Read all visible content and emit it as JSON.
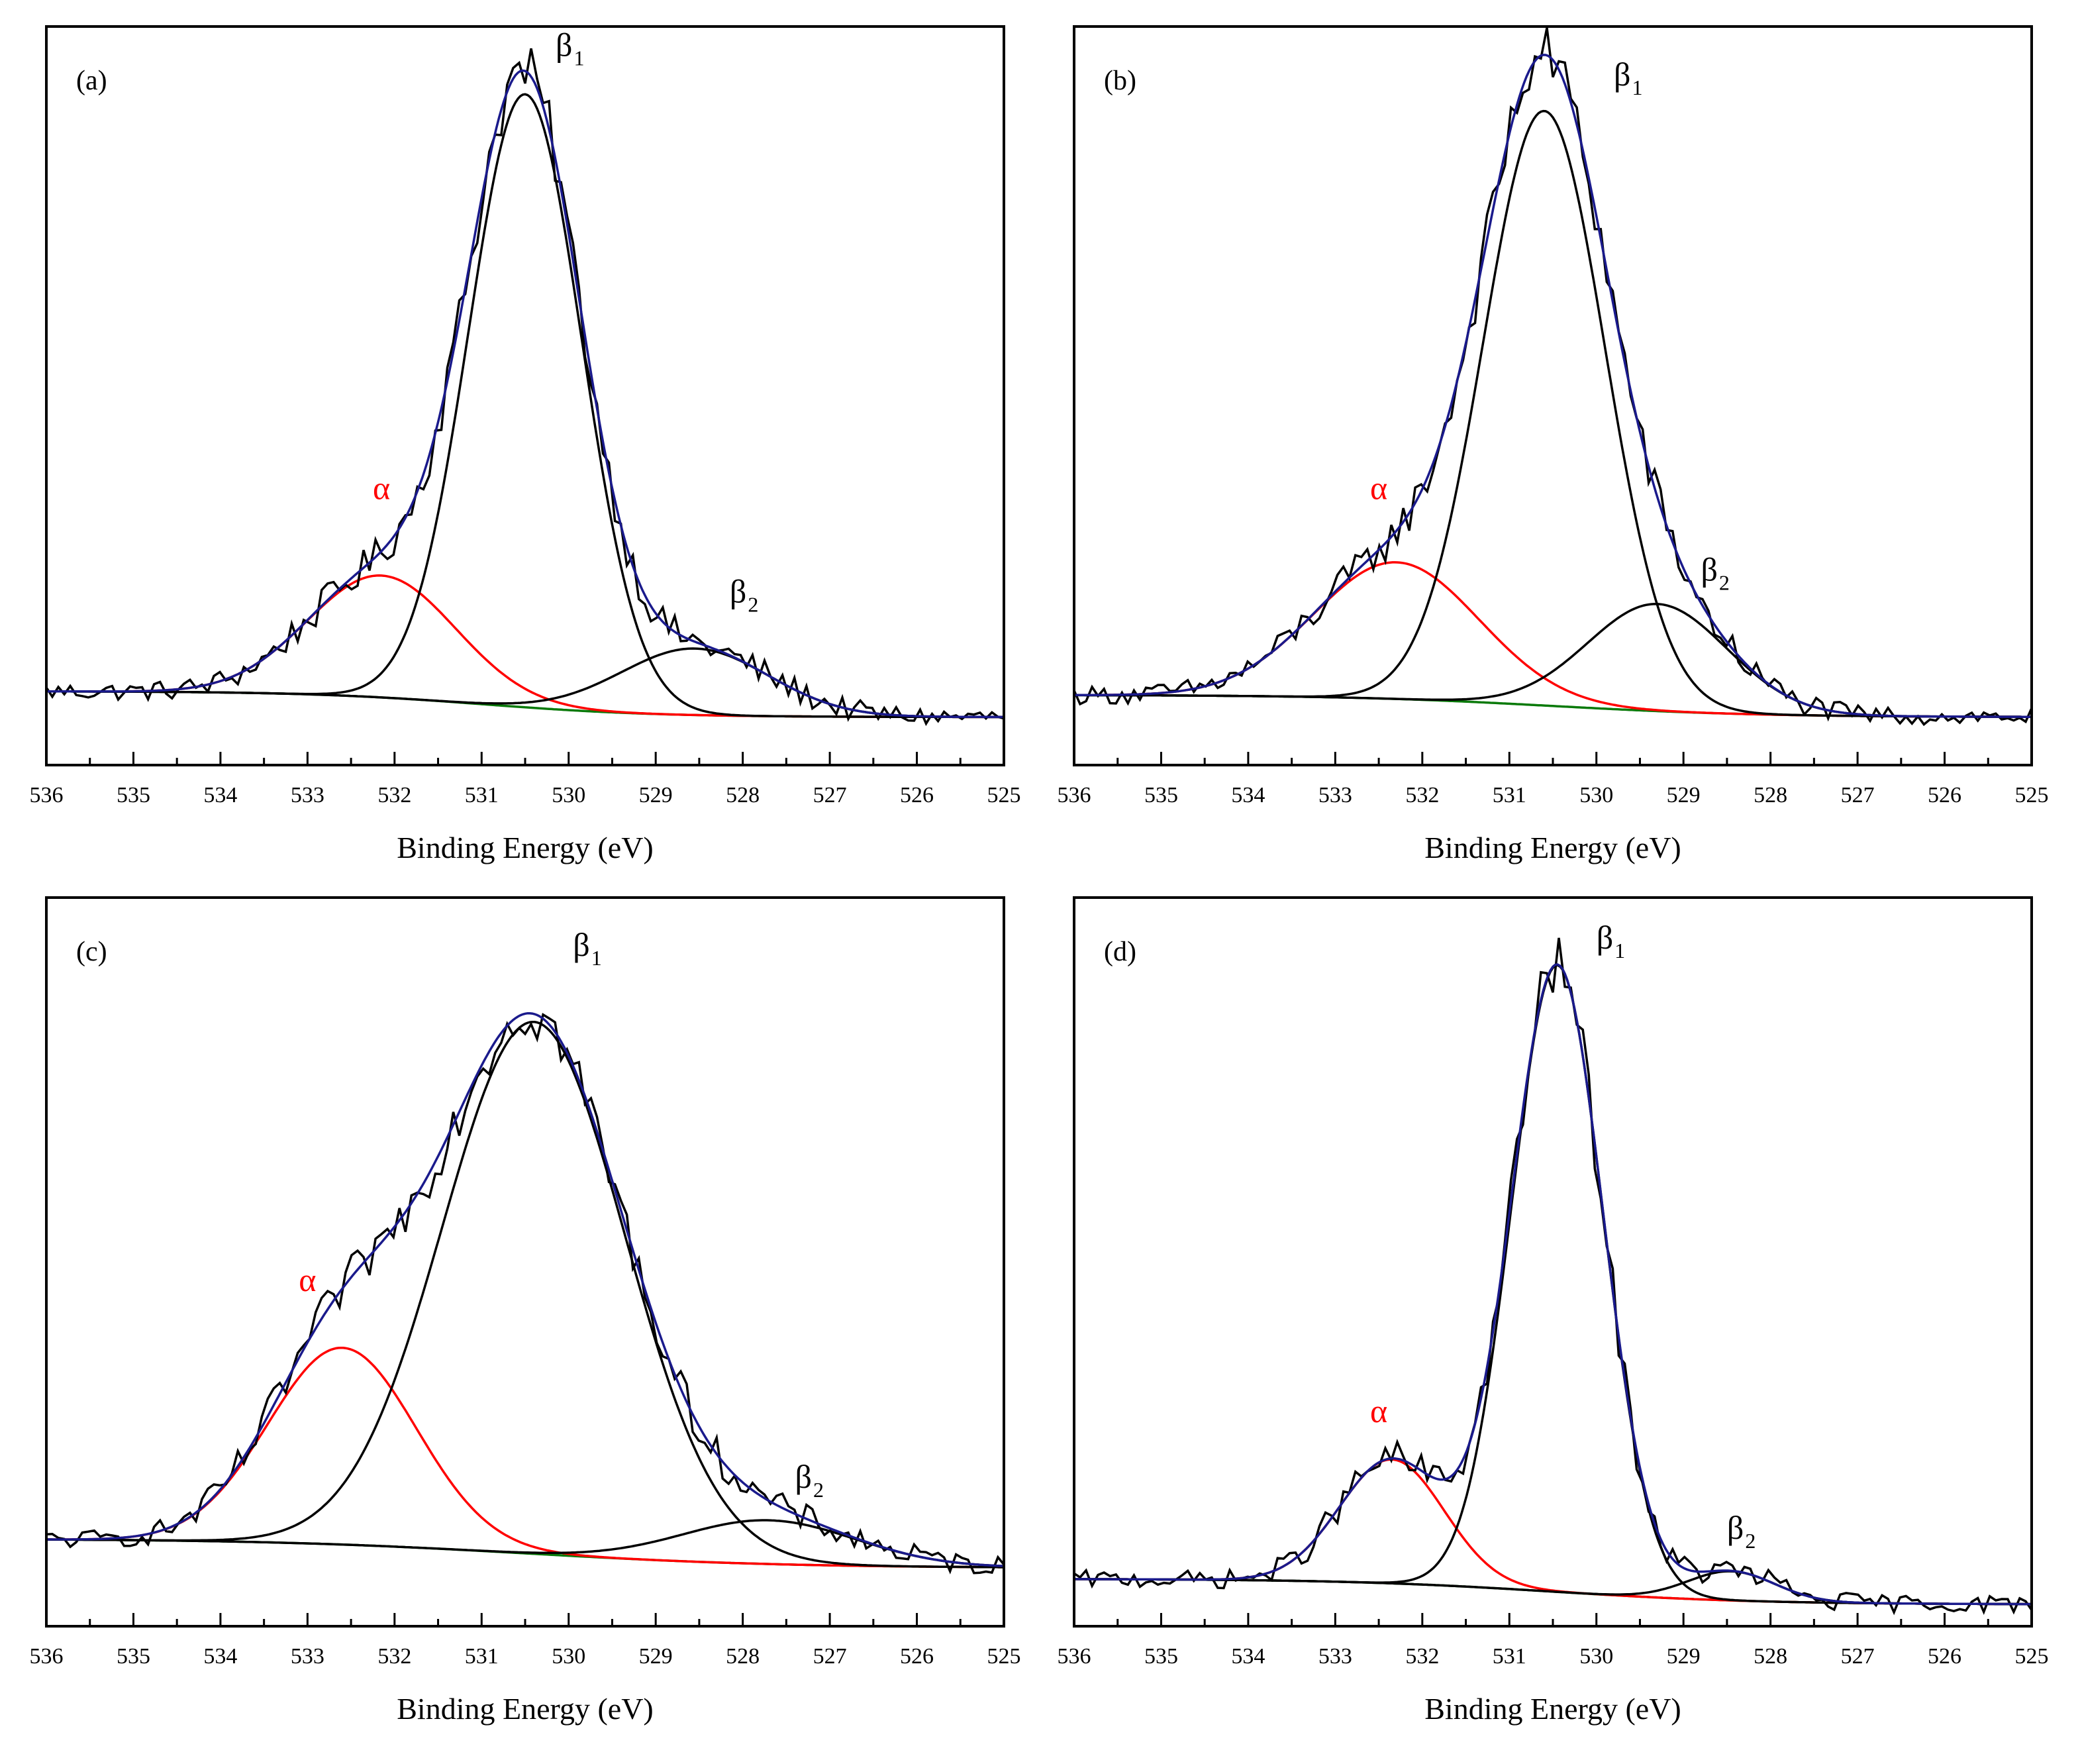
{
  "chart_data": [
    {
      "type": "line",
      "panel": "(a)",
      "xlabel": "Binding Energy (eV)",
      "ylabel": "",
      "xlim": [
        536,
        525
      ],
      "xticks": [
        "536",
        "535",
        "534",
        "533",
        "532",
        "531",
        "530",
        "529",
        "528",
        "527",
        "526",
        "525"
      ],
      "grid": false,
      "baseline": {
        "high": 0.1,
        "low": 0.065,
        "center": 531.0,
        "width": 1.0
      },
      "components": [
        {
          "name": "α",
          "center": 532.15,
          "height": 0.165,
          "width": 0.85,
          "color": "#ff0000"
        },
        {
          "name": "β1",
          "center": 530.5,
          "height": 0.83,
          "width": 0.65,
          "color": "#000000"
        },
        {
          "name": "β2",
          "center": 528.55,
          "height": 0.09,
          "width": 0.85,
          "color": "#000000"
        }
      ],
      "annotations": [
        {
          "text": "α",
          "sub": "",
          "x": 532.25,
          "y": 0.36,
          "color": "#ff0000"
        },
        {
          "text": "β",
          "sub": "1",
          "x": 530.15,
          "y": 0.96,
          "color": "#000000"
        },
        {
          "text": "β",
          "sub": "2",
          "x": 528.15,
          "y": 0.22,
          "color": "#000000"
        }
      ]
    },
    {
      "type": "line",
      "panel": "(b)",
      "xlabel": "Binding Energy (eV)",
      "ylabel": "",
      "xlim": [
        536,
        525
      ],
      "xticks": [
        "536",
        "535",
        "534",
        "533",
        "532",
        "531",
        "530",
        "529",
        "528",
        "527",
        "526",
        "525"
      ],
      "grid": false,
      "baseline": {
        "high": 0.095,
        "low": 0.065,
        "center": 530.5,
        "width": 1.2
      },
      "components": [
        {
          "name": "α",
          "center": 532.3,
          "height": 0.185,
          "width": 0.95,
          "color": "#ff0000"
        },
        {
          "name": "β1",
          "center": 530.6,
          "height": 0.805,
          "width": 0.7,
          "color": "#000000"
        },
        {
          "name": "β2",
          "center": 529.3,
          "height": 0.145,
          "width": 0.8,
          "color": "#000000"
        }
      ],
      "annotations": [
        {
          "text": "α",
          "sub": "",
          "x": 532.6,
          "y": 0.36,
          "color": "#ff0000"
        },
        {
          "text": "β",
          "sub": "1",
          "x": 529.8,
          "y": 0.92,
          "color": "#000000"
        },
        {
          "text": "β",
          "sub": "2",
          "x": 528.8,
          "y": 0.25,
          "color": "#000000"
        }
      ]
    },
    {
      "type": "line",
      "panel": "(c)",
      "xlabel": "Binding Energy (eV)",
      "ylabel": "",
      "xlim": [
        536,
        525
      ],
      "xticks": [
        "536",
        "535",
        "534",
        "533",
        "532",
        "531",
        "530",
        "529",
        "528",
        "527",
        "526",
        "525"
      ],
      "grid": false,
      "baseline": {
        "high": 0.12,
        "low": 0.08,
        "center": 530.5,
        "width": 1.5
      },
      "components": [
        {
          "name": "α",
          "center": 532.6,
          "height": 0.27,
          "width": 0.85,
          "color": "#ff0000"
        },
        {
          "name": "β1",
          "center": 530.4,
          "height": 0.73,
          "width": 1.05,
          "color": "#000000"
        },
        {
          "name": "β2",
          "center": 527.7,
          "height": 0.06,
          "width": 1.0,
          "color": "#000000"
        }
      ],
      "annotations": [
        {
          "text": "α",
          "sub": "",
          "x": 533.1,
          "y": 0.46,
          "color": "#ff0000"
        },
        {
          "text": "β",
          "sub": "1",
          "x": 529.95,
          "y": 0.92,
          "color": "#000000"
        },
        {
          "text": "β",
          "sub": "2",
          "x": 527.4,
          "y": 0.19,
          "color": "#000000"
        }
      ]
    },
    {
      "type": "line",
      "panel": "(d)",
      "xlabel": "Binding Energy (eV)",
      "ylabel": "",
      "xlim": [
        536,
        525
      ],
      "xticks": [
        "536",
        "535",
        "534",
        "533",
        "532",
        "531",
        "530",
        "529",
        "528",
        "527",
        "526",
        "525"
      ],
      "grid": false,
      "baseline": {
        "high": 0.065,
        "low": 0.03,
        "center": 530.5,
        "width": 1.2
      },
      "components": [
        {
          "name": "α",
          "center": 532.35,
          "height": 0.17,
          "width": 0.6,
          "color": "#ff0000"
        },
        {
          "name": "β1",
          "center": 530.45,
          "height": 0.86,
          "width": 0.53,
          "color": "#000000"
        },
        {
          "name": "β2",
          "center": 528.45,
          "height": 0.04,
          "width": 0.5,
          "color": "#000000"
        }
      ],
      "annotations": [
        {
          "text": "α",
          "sub": "",
          "x": 532.6,
          "y": 0.28,
          "color": "#ff0000"
        },
        {
          "text": "β",
          "sub": "1",
          "x": 530.0,
          "y": 0.93,
          "color": "#000000"
        },
        {
          "text": "β",
          "sub": "2",
          "x": 528.5,
          "y": 0.12,
          "color": "#000000"
        }
      ]
    }
  ],
  "colors": {
    "raw": "#000000",
    "envelope": "#1a1a8c",
    "baseline": "#0a7a0a",
    "alpha_peak": "#ff0000",
    "beta_peaks": "#000000"
  }
}
